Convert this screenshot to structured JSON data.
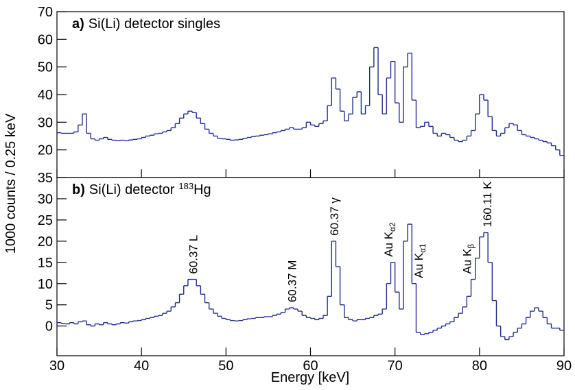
{
  "chart_data": [
    {
      "type": "histogram",
      "title": {
        "label": "a)",
        "text": "Si(Li) detector singles"
      },
      "ylabel": "1000 counts / 0.25 keV",
      "color": "#1f2c8c",
      "xlim": [
        30,
        90
      ],
      "xticks": [
        30,
        40,
        50,
        60,
        70,
        80,
        90
      ],
      "ylim": [
        10,
        70
      ],
      "yticks": [
        20,
        30,
        40,
        50,
        60,
        70
      ],
      "bins": [
        30,
        30.5,
        31,
        31.5,
        32,
        32.5,
        33,
        33.5,
        34,
        34.5,
        35,
        35.5,
        36,
        36.5,
        37,
        37.5,
        38,
        38.5,
        39,
        39.5,
        40,
        40.5,
        41,
        41.5,
        42,
        42.5,
        43,
        43.5,
        44,
        44.5,
        45,
        45.5,
        46,
        46.5,
        47,
        47.5,
        48,
        48.5,
        49,
        49.5,
        50,
        50.5,
        51,
        51.5,
        52,
        52.5,
        53,
        53.5,
        54,
        54.5,
        55,
        55.5,
        56,
        56.5,
        57,
        57.5,
        58,
        58.5,
        59,
        59.5,
        60,
        60.5,
        61,
        61.5,
        62,
        62.5,
        63,
        63.5,
        64,
        64.5,
        65,
        65.5,
        66,
        66.5,
        67,
        67.5,
        68,
        68.5,
        69,
        69.5,
        70,
        70.5,
        71,
        71.5,
        72,
        72.5,
        73,
        73.5,
        74,
        74.5,
        75,
        75.5,
        76,
        76.5,
        77,
        77.5,
        78,
        78.5,
        79,
        79.5,
        80,
        80.5,
        81,
        81.5,
        82,
        82.5,
        83,
        83.5,
        84,
        84.5,
        85,
        85.5,
        86,
        86.5,
        87,
        87.5,
        88,
        88.5,
        89,
        89.5,
        90
      ],
      "values": [
        26.2,
        26,
        26,
        26,
        26.5,
        29,
        33,
        26,
        24,
        23.5,
        24,
        24.5,
        23.8,
        23.5,
        23.3,
        23.5,
        23.3,
        23.6,
        23.8,
        24,
        24.5,
        25,
        25.3,
        25.8,
        26,
        26.5,
        27,
        28,
        29.5,
        31.5,
        33,
        34,
        33.5,
        31.5,
        29.5,
        27.5,
        26,
        25,
        24.2,
        24,
        23.8,
        23.5,
        23.6,
        23.8,
        24.2,
        24.5,
        24.8,
        25,
        25.3,
        25.5,
        25.8,
        26.2,
        26.5,
        27,
        27.5,
        28,
        27.5,
        27.5,
        28,
        30,
        29,
        28.5,
        29.5,
        30.5,
        36,
        46,
        42,
        34,
        30.5,
        33,
        39,
        41,
        33,
        36,
        50,
        57,
        40,
        33,
        46,
        52,
        37,
        30,
        50,
        55,
        38,
        28,
        28.5,
        30,
        28.5,
        26,
        25,
        26,
        25.5,
        24.5,
        23.5,
        23,
        23.5,
        25,
        27,
        33,
        40,
        38,
        32,
        27,
        25,
        26,
        28,
        29.5,
        29,
        27,
        25.5,
        25,
        24.5,
        24,
        23.5,
        23,
        22.5,
        21.5,
        20,
        18
      ]
    },
    {
      "type": "histogram",
      "title": {
        "label": "b)",
        "text": "Si(Li) detector",
        "sup": "183",
        "tail": "Hg"
      },
      "xlabel": "Energy [keV]",
      "color": "#1f2c8c",
      "xlim": [
        30,
        90
      ],
      "xticks": [
        30,
        40,
        50,
        60,
        70,
        80,
        90
      ],
      "ylim": [
        -7,
        35
      ],
      "yticks": [
        0,
        5,
        10,
        15,
        20,
        25,
        30,
        35
      ],
      "bins": [
        30,
        30.5,
        31,
        31.5,
        32,
        32.5,
        33,
        33.5,
        34,
        34.5,
        35,
        35.5,
        36,
        36.5,
        37,
        37.5,
        38,
        38.5,
        39,
        39.5,
        40,
        40.5,
        41,
        41.5,
        42,
        42.5,
        43,
        43.5,
        44,
        44.5,
        45,
        45.5,
        46,
        46.5,
        47,
        47.5,
        48,
        48.5,
        49,
        49.5,
        50,
        50.5,
        51,
        51.5,
        52,
        52.5,
        53,
        53.5,
        54,
        54.5,
        55,
        55.5,
        56,
        56.5,
        57,
        57.5,
        58,
        58.5,
        59,
        59.5,
        60,
        60.5,
        61,
        61.5,
        62,
        62.5,
        63,
        63.5,
        64,
        64.5,
        65,
        65.5,
        66,
        66.5,
        67,
        67.5,
        68,
        68.5,
        69,
        69.5,
        70,
        70.5,
        71,
        71.5,
        72,
        72.5,
        73,
        73.5,
        74,
        74.5,
        75,
        75.5,
        76,
        76.5,
        77,
        77.5,
        78,
        78.5,
        79,
        79.5,
        80,
        80.5,
        81,
        81.5,
        82,
        82.5,
        83,
        83.5,
        84,
        84.5,
        85,
        85.5,
        86,
        86.5,
        87,
        87.5,
        88,
        88.5,
        89,
        89.5,
        90
      ],
      "values": [
        0.8,
        0.6,
        0.5,
        0.8,
        0.5,
        1,
        1.2,
        0.3,
        0,
        0.5,
        0.3,
        0.8,
        0.5,
        0.3,
        0.5,
        0.8,
        0.7,
        1,
        1.2,
        1.3,
        1.5,
        1.8,
        2,
        2.3,
        2.5,
        3,
        3.5,
        4.5,
        5.5,
        7.5,
        9.5,
        11,
        11,
        9.5,
        7.5,
        5.5,
        4,
        3,
        2.3,
        1.8,
        1.5,
        1.3,
        1.2,
        1.3,
        1.5,
        1.7,
        1.8,
        2,
        2,
        2.2,
        2.2,
        2.5,
        2.8,
        3.2,
        4,
        4.3,
        4,
        3.5,
        2.5,
        2,
        1.8,
        1.5,
        1.8,
        2.5,
        7,
        20,
        14,
        5,
        2,
        1.5,
        1.2,
        1.5,
        1.5,
        1.8,
        2,
        2.5,
        2.8,
        4,
        10,
        15,
        8,
        4,
        20,
        24,
        10,
        -1.5,
        -2,
        -1.8,
        -1.5,
        -1,
        -0.5,
        0,
        0.5,
        1,
        2,
        3,
        4.5,
        7,
        11,
        16,
        21,
        22,
        15,
        6,
        0,
        -2.5,
        -3.2,
        -2.5,
        -1.5,
        -0.5,
        0.5,
        2,
        3.5,
        4.3,
        3.5,
        2,
        0.5,
        -0.5,
        -0.5,
        -1
      ],
      "annotations": [
        {
          "text": "60.37 L",
          "x": 46.1
        },
        {
          "text": "60.37 M",
          "x": 57.8
        },
        {
          "text": "60.37 γ",
          "x": 62.8
        },
        {
          "text": "Au K",
          "sub": "α2",
          "x": 69.2
        },
        {
          "text": "Au K",
          "sub": "α1",
          "x": 72.8
        },
        {
          "text": "Au K",
          "sub": "β",
          "x": 78.5
        },
        {
          "text": "160.11 K",
          "x": 80.9
        }
      ]
    }
  ]
}
